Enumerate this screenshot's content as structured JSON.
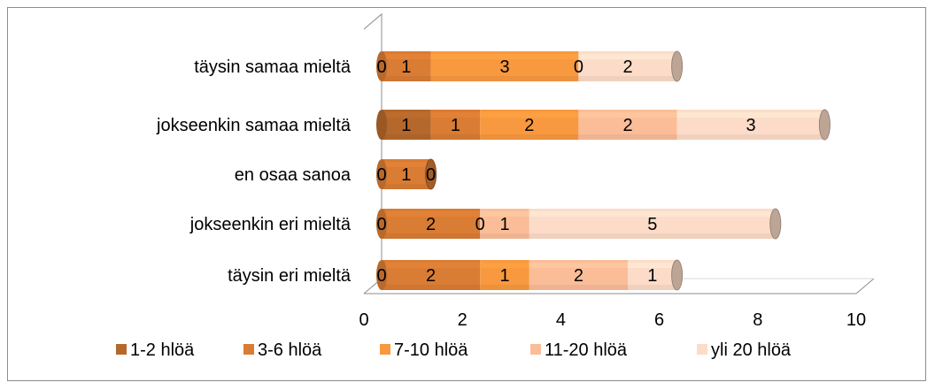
{
  "chart_data": {
    "type": "bar",
    "orientation": "horizontal",
    "stacked": true,
    "style": "3d-cylinder",
    "title": "",
    "xlabel": "",
    "ylabel": "",
    "xlim": [
      0,
      10
    ],
    "x_ticks": [
      "0",
      "2",
      "4",
      "6",
      "8",
      "10"
    ],
    "categories": [
      "täysin samaa mieltä",
      "jokseenkin samaa mieltä",
      "en osaa sanoa",
      "jokseenkin eri mieltä",
      "täysin eri mieltä"
    ],
    "series": [
      {
        "name": "1-2 hlöä",
        "color": "#b5682b",
        "values": [
          0,
          1,
          0,
          0,
          0
        ]
      },
      {
        "name": "3-6 hlöä",
        "color": "#d97c34",
        "values": [
          1,
          1,
          1,
          2,
          2
        ]
      },
      {
        "name": "7-10 hlöä",
        "color": "#f8993f",
        "values": [
          3,
          2,
          0,
          0,
          1
        ]
      },
      {
        "name": "11-20 hlöä",
        "color": "#fbbd98",
        "values": [
          0,
          2,
          null,
          1,
          2
        ]
      },
      {
        "name": "yli 20 hlöä",
        "color": "#fcdcc8",
        "values": [
          2,
          3,
          null,
          5,
          1
        ]
      }
    ],
    "legend_position": "bottom",
    "grid": false
  }
}
